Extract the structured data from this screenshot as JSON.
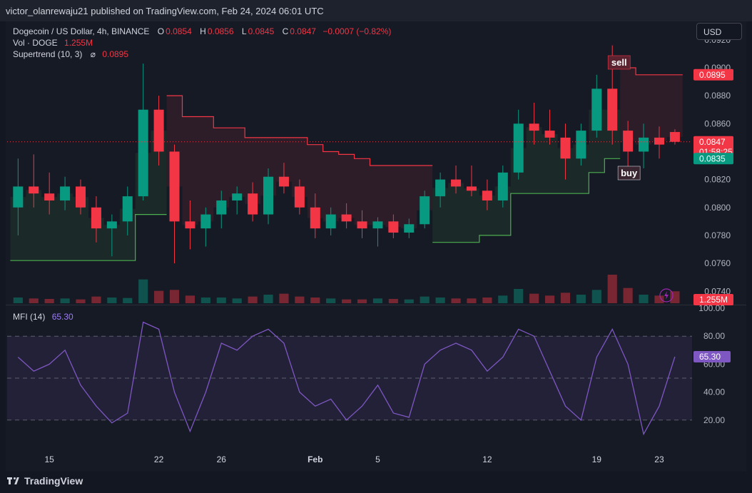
{
  "header": {
    "publisher": "victor_olanrewaju21 published on TradingView.com, Feb 24, 2024 06:01 UTC"
  },
  "legend": {
    "symbol": "Dogecoin / US Dollar, 4h, BINANCE",
    "o_label": "O",
    "o_value": "0.0854",
    "h_label": "H",
    "h_value": "0.0856",
    "l_label": "L",
    "l_value": "0.0845",
    "c_label": "C",
    "c_value": "0.0847",
    "change": "−0.0007 (−0.82%)",
    "vol_label": "Vol · DOGE",
    "vol_value": "1.255M",
    "supertrend_label": "Supertrend (10, 3)",
    "supertrend_symbol": "⌀",
    "supertrend_value": "0.0895",
    "mfi_label": "MFI (14)",
    "mfi_value": "65.30"
  },
  "currency_button": "USD",
  "footer": {
    "brand": "TradingView",
    "logo_icon": "tradingview-logo-icon"
  },
  "colors": {
    "up": "#089981",
    "down": "#f23645",
    "supertrend_up": "#4caf50",
    "supertrend_down": "#f23645",
    "mfi": "#7e57c2",
    "background": "#161a25"
  },
  "chart_data": [
    {
      "type": "candlestick",
      "title": "Dogecoin / US Dollar, 4h, BINANCE",
      "x_ticks": [
        "15",
        "22",
        "26",
        "Feb",
        "5",
        "12",
        "19",
        "23"
      ],
      "y_ticks": [
        "0.0920",
        "0.0900",
        "0.0880",
        "0.0860",
        "0.0820",
        "0.0800",
        "0.0780",
        "0.0760",
        "0.0740"
      ],
      "ylim": [
        0.0734,
        0.0924
      ],
      "price_labels": [
        {
          "name": "supertrend",
          "value": "0.0895",
          "color": "#f23645"
        },
        {
          "name": "last-price",
          "value": "0.0847",
          "countdown": "01:58:25",
          "color": "#f23645"
        },
        {
          "name": "support",
          "value": "0.0835",
          "color": "#089981"
        },
        {
          "name": "volume",
          "value": "1.255M",
          "color": "#f23645"
        }
      ],
      "signals": [
        {
          "label": "sell",
          "date": "Feb 20"
        },
        {
          "label": "buy",
          "date": "Feb 21"
        }
      ],
      "ohlc": [
        {
          "date": "Jan 13",
          "o": 0.08,
          "h": 0.0835,
          "l": 0.078,
          "c": 0.0815
        },
        {
          "date": "Jan 14",
          "o": 0.0815,
          "h": 0.0838,
          "l": 0.08,
          "c": 0.081
        },
        {
          "date": "Jan 15",
          "o": 0.081,
          "h": 0.0825,
          "l": 0.0795,
          "c": 0.0805
        },
        {
          "date": "Jan 16",
          "o": 0.0805,
          "h": 0.0822,
          "l": 0.0798,
          "c": 0.0815
        },
        {
          "date": "Jan 17",
          "o": 0.0815,
          "h": 0.082,
          "l": 0.0795,
          "c": 0.08
        },
        {
          "date": "Jan 18",
          "o": 0.08,
          "h": 0.0808,
          "l": 0.0775,
          "c": 0.0785
        },
        {
          "date": "Jan 19",
          "o": 0.0785,
          "h": 0.0795,
          "l": 0.0765,
          "c": 0.079
        },
        {
          "date": "Jan 20",
          "o": 0.079,
          "h": 0.0815,
          "l": 0.078,
          "c": 0.0808
        },
        {
          "date": "Jan 21",
          "o": 0.0808,
          "h": 0.0903,
          "l": 0.0805,
          "c": 0.087
        },
        {
          "date": "Jan 22",
          "o": 0.087,
          "h": 0.088,
          "l": 0.083,
          "c": 0.084
        },
        {
          "date": "Jan 23",
          "o": 0.084,
          "h": 0.0845,
          "l": 0.076,
          "c": 0.079
        },
        {
          "date": "Jan 24",
          "o": 0.079,
          "h": 0.0805,
          "l": 0.077,
          "c": 0.0785
        },
        {
          "date": "Jan 25",
          "o": 0.0785,
          "h": 0.08,
          "l": 0.0772,
          "c": 0.0795
        },
        {
          "date": "Jan 26",
          "o": 0.0795,
          "h": 0.0812,
          "l": 0.0785,
          "c": 0.0805
        },
        {
          "date": "Jan 27",
          "o": 0.0805,
          "h": 0.0815,
          "l": 0.0795,
          "c": 0.081
        },
        {
          "date": "Jan 28",
          "o": 0.081,
          "h": 0.0818,
          "l": 0.079,
          "c": 0.0795
        },
        {
          "date": "Jan 29",
          "o": 0.0795,
          "h": 0.0828,
          "l": 0.0788,
          "c": 0.0822
        },
        {
          "date": "Jan 30",
          "o": 0.0822,
          "h": 0.0832,
          "l": 0.081,
          "c": 0.0815
        },
        {
          "date": "Jan 31",
          "o": 0.0815,
          "h": 0.082,
          "l": 0.0795,
          "c": 0.08
        },
        {
          "date": "Feb 1",
          "o": 0.08,
          "h": 0.081,
          "l": 0.0778,
          "c": 0.0785
        },
        {
          "date": "Feb 2",
          "o": 0.0785,
          "h": 0.08,
          "l": 0.078,
          "c": 0.0795
        },
        {
          "date": "Feb 3",
          "o": 0.0795,
          "h": 0.0803,
          "l": 0.0785,
          "c": 0.079
        },
        {
          "date": "Feb 4",
          "o": 0.079,
          "h": 0.0798,
          "l": 0.0778,
          "c": 0.0785
        },
        {
          "date": "Feb 5",
          "o": 0.0785,
          "h": 0.0793,
          "l": 0.0772,
          "c": 0.079
        },
        {
          "date": "Feb 6",
          "o": 0.079,
          "h": 0.0795,
          "l": 0.0778,
          "c": 0.0782
        },
        {
          "date": "Feb 7",
          "o": 0.0782,
          "h": 0.0792,
          "l": 0.0778,
          "c": 0.0788
        },
        {
          "date": "Feb 8",
          "o": 0.0788,
          "h": 0.0812,
          "l": 0.0785,
          "c": 0.0808
        },
        {
          "date": "Feb 9",
          "o": 0.0808,
          "h": 0.0825,
          "l": 0.08,
          "c": 0.082
        },
        {
          "date": "Feb 10",
          "o": 0.082,
          "h": 0.083,
          "l": 0.081,
          "c": 0.0815
        },
        {
          "date": "Feb 11",
          "o": 0.0815,
          "h": 0.083,
          "l": 0.0808,
          "c": 0.0812
        },
        {
          "date": "Feb 12",
          "o": 0.0812,
          "h": 0.082,
          "l": 0.0798,
          "c": 0.0805
        },
        {
          "date": "Feb 13",
          "o": 0.0805,
          "h": 0.083,
          "l": 0.08,
          "c": 0.0825
        },
        {
          "date": "Feb 14",
          "o": 0.0825,
          "h": 0.087,
          "l": 0.082,
          "c": 0.086
        },
        {
          "date": "Feb 15",
          "o": 0.086,
          "h": 0.0875,
          "l": 0.0845,
          "c": 0.0855
        },
        {
          "date": "Feb 16",
          "o": 0.0855,
          "h": 0.087,
          "l": 0.0845,
          "c": 0.085
        },
        {
          "date": "Feb 17",
          "o": 0.085,
          "h": 0.086,
          "l": 0.082,
          "c": 0.0835
        },
        {
          "date": "Feb 18",
          "o": 0.0835,
          "h": 0.086,
          "l": 0.083,
          "c": 0.0855
        },
        {
          "date": "Feb 19",
          "o": 0.0855,
          "h": 0.0895,
          "l": 0.085,
          "c": 0.0885
        },
        {
          "date": "Feb 20",
          "o": 0.0885,
          "h": 0.0916,
          "l": 0.0845,
          "c": 0.0855
        },
        {
          "date": "Feb 21",
          "o": 0.0855,
          "h": 0.0862,
          "l": 0.0825,
          "c": 0.084
        },
        {
          "date": "Feb 22",
          "o": 0.084,
          "h": 0.086,
          "l": 0.0828,
          "c": 0.085
        },
        {
          "date": "Feb 23",
          "o": 0.085,
          "h": 0.0858,
          "l": 0.0835,
          "c": 0.0845
        },
        {
          "date": "Feb 24",
          "o": 0.0854,
          "h": 0.0856,
          "l": 0.0845,
          "c": 0.0847
        }
      ],
      "volume": [
        {
          "date": "Jan 13",
          "v": 0.6,
          "up": true
        },
        {
          "date": "Jan 14",
          "v": 0.5,
          "up": false
        },
        {
          "date": "Jan 15",
          "v": 0.45,
          "up": false
        },
        {
          "date": "Jan 16",
          "v": 0.5,
          "up": true
        },
        {
          "date": "Jan 17",
          "v": 0.4,
          "up": false
        },
        {
          "date": "Jan 18",
          "v": 0.7,
          "up": false
        },
        {
          "date": "Jan 19",
          "v": 0.6,
          "up": true
        },
        {
          "date": "Jan 20",
          "v": 0.55,
          "up": true
        },
        {
          "date": "Jan 21",
          "v": 2.5,
          "up": true
        },
        {
          "date": "Jan 22",
          "v": 1.3,
          "up": false
        },
        {
          "date": "Jan 23",
          "v": 1.4,
          "up": false
        },
        {
          "date": "Jan 24",
          "v": 0.8,
          "up": false
        },
        {
          "date": "Jan 25",
          "v": 0.6,
          "up": true
        },
        {
          "date": "Jan 26",
          "v": 0.6,
          "up": true
        },
        {
          "date": "Jan 27",
          "v": 0.5,
          "up": true
        },
        {
          "date": "Jan 28",
          "v": 0.7,
          "up": false
        },
        {
          "date": "Jan 29",
          "v": 0.9,
          "up": true
        },
        {
          "date": "Jan 30",
          "v": 1.0,
          "up": false
        },
        {
          "date": "Jan 31",
          "v": 0.7,
          "up": false
        },
        {
          "date": "Feb 1",
          "v": 0.6,
          "up": false
        },
        {
          "date": "Feb 2",
          "v": 0.5,
          "up": true
        },
        {
          "date": "Feb 3",
          "v": 0.4,
          "up": false
        },
        {
          "date": "Feb 4",
          "v": 0.4,
          "up": false
        },
        {
          "date": "Feb 5",
          "v": 0.5,
          "up": true
        },
        {
          "date": "Feb 6",
          "v": 0.45,
          "up": false
        },
        {
          "date": "Feb 7",
          "v": 0.4,
          "up": true
        },
        {
          "date": "Feb 8",
          "v": 0.7,
          "up": true
        },
        {
          "date": "Feb 9",
          "v": 0.6,
          "up": true
        },
        {
          "date": "Feb 10",
          "v": 0.5,
          "up": false
        },
        {
          "date": "Feb 11",
          "v": 0.5,
          "up": false
        },
        {
          "date": "Feb 12",
          "v": 0.6,
          "up": false
        },
        {
          "date": "Feb 13",
          "v": 0.8,
          "up": true
        },
        {
          "date": "Feb 14",
          "v": 1.5,
          "up": true
        },
        {
          "date": "Feb 15",
          "v": 1.0,
          "up": false
        },
        {
          "date": "Feb 16",
          "v": 0.8,
          "up": false
        },
        {
          "date": "Feb 17",
          "v": 1.1,
          "up": false
        },
        {
          "date": "Feb 18",
          "v": 0.9,
          "up": true
        },
        {
          "date": "Feb 19",
          "v": 1.4,
          "up": true
        },
        {
          "date": "Feb 20",
          "v": 3.0,
          "up": false
        },
        {
          "date": "Feb 21",
          "v": 1.6,
          "up": false
        },
        {
          "date": "Feb 22",
          "v": 0.9,
          "up": true
        },
        {
          "date": "Feb 23",
          "v": 0.8,
          "up": false
        },
        {
          "date": "Feb 24",
          "v": 1.255,
          "up": false
        }
      ],
      "supertrend": [
        {
          "date": "Jan 13",
          "v": 0.0762,
          "dir": "up"
        },
        {
          "date": "Jan 14",
          "v": 0.0762,
          "dir": "up"
        },
        {
          "date": "Jan 15",
          "v": 0.0762,
          "dir": "up"
        },
        {
          "date": "Jan 16",
          "v": 0.0762,
          "dir": "up"
        },
        {
          "date": "Jan 17",
          "v": 0.0762,
          "dir": "up"
        },
        {
          "date": "Jan 18",
          "v": 0.0762,
          "dir": "up"
        },
        {
          "date": "Jan 19",
          "v": 0.0762,
          "dir": "up"
        },
        {
          "date": "Jan 20",
          "v": 0.0762,
          "dir": "up"
        },
        {
          "date": "Jan 21",
          "v": 0.0795,
          "dir": "up"
        },
        {
          "date": "Jan 22",
          "v": 0.0795,
          "dir": "up"
        },
        {
          "date": "Jan 23",
          "v": 0.088,
          "dir": "down"
        },
        {
          "date": "Jan 24",
          "v": 0.0865,
          "dir": "down"
        },
        {
          "date": "Jan 25",
          "v": 0.0865,
          "dir": "down"
        },
        {
          "date": "Jan 26",
          "v": 0.0857,
          "dir": "down"
        },
        {
          "date": "Jan 27",
          "v": 0.0857,
          "dir": "down"
        },
        {
          "date": "Jan 28",
          "v": 0.085,
          "dir": "down"
        },
        {
          "date": "Jan 29",
          "v": 0.085,
          "dir": "down"
        },
        {
          "date": "Jan 30",
          "v": 0.085,
          "dir": "down"
        },
        {
          "date": "Jan 31",
          "v": 0.085,
          "dir": "down"
        },
        {
          "date": "Feb 1",
          "v": 0.0845,
          "dir": "down"
        },
        {
          "date": "Feb 2",
          "v": 0.084,
          "dir": "down"
        },
        {
          "date": "Feb 3",
          "v": 0.0838,
          "dir": "down"
        },
        {
          "date": "Feb 4",
          "v": 0.0835,
          "dir": "down"
        },
        {
          "date": "Feb 5",
          "v": 0.083,
          "dir": "down"
        },
        {
          "date": "Feb 6",
          "v": 0.083,
          "dir": "down"
        },
        {
          "date": "Feb 7",
          "v": 0.083,
          "dir": "down"
        },
        {
          "date": "Feb 8",
          "v": 0.083,
          "dir": "down"
        },
        {
          "date": "Feb 9",
          "v": 0.0775,
          "dir": "up"
        },
        {
          "date": "Feb 10",
          "v": 0.0775,
          "dir": "up"
        },
        {
          "date": "Feb 11",
          "v": 0.0775,
          "dir": "up"
        },
        {
          "date": "Feb 12",
          "v": 0.078,
          "dir": "up"
        },
        {
          "date": "Feb 13",
          "v": 0.078,
          "dir": "up"
        },
        {
          "date": "Feb 14",
          "v": 0.081,
          "dir": "up"
        },
        {
          "date": "Feb 15",
          "v": 0.081,
          "dir": "up"
        },
        {
          "date": "Feb 16",
          "v": 0.081,
          "dir": "up"
        },
        {
          "date": "Feb 17",
          "v": 0.081,
          "dir": "up"
        },
        {
          "date": "Feb 18",
          "v": 0.081,
          "dir": "up"
        },
        {
          "date": "Feb 19",
          "v": 0.0825,
          "dir": "up"
        },
        {
          "date": "Feb 20",
          "v": 0.0835,
          "dir": "up"
        },
        {
          "date": "Feb 21",
          "v": 0.09,
          "dir": "down"
        },
        {
          "date": "Feb 22",
          "v": 0.0895,
          "dir": "down"
        },
        {
          "date": "Feb 23",
          "v": 0.0895,
          "dir": "down"
        },
        {
          "date": "Feb 24",
          "v": 0.0895,
          "dir": "down"
        }
      ]
    },
    {
      "type": "line",
      "title": "MFI (14)",
      "y_ticks": [
        "100.00",
        "80.00",
        "60.00",
        "40.00",
        "20.00"
      ],
      "ylim": [
        0,
        100
      ],
      "bands": [
        20,
        50,
        80
      ],
      "series": [
        {
          "name": "MFI (14)",
          "x": [
            "Jan 13",
            "Jan 14",
            "Jan 15",
            "Jan 16",
            "Jan 17",
            "Jan 18",
            "Jan 19",
            "Jan 20",
            "Jan 21",
            "Jan 22",
            "Jan 23",
            "Jan 24",
            "Jan 25",
            "Jan 26",
            "Jan 27",
            "Jan 28",
            "Jan 29",
            "Jan 30",
            "Jan 31",
            "Feb 1",
            "Feb 2",
            "Feb 3",
            "Feb 4",
            "Feb 5",
            "Feb 6",
            "Feb 7",
            "Feb 8",
            "Feb 9",
            "Feb 10",
            "Feb 11",
            "Feb 12",
            "Feb 13",
            "Feb 14",
            "Feb 15",
            "Feb 16",
            "Feb 17",
            "Feb 18",
            "Feb 19",
            "Feb 20",
            "Feb 21",
            "Feb 22",
            "Feb 23",
            "Feb 24"
          ],
          "values": [
            65,
            55,
            60,
            70,
            45,
            30,
            18,
            25,
            90,
            85,
            40,
            12,
            40,
            75,
            70,
            80,
            85,
            75,
            40,
            30,
            35,
            20,
            30,
            45,
            25,
            22,
            60,
            70,
            75,
            70,
            55,
            65,
            85,
            80,
            55,
            30,
            20,
            65,
            85,
            60,
            10,
            30,
            65.3
          ]
        }
      ]
    }
  ]
}
